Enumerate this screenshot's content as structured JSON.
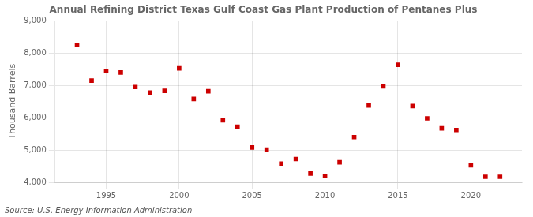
{
  "chart_data": {
    "type": "scatter",
    "title": "Annual Refining District Texas Gulf Coast Gas Plant Production of Pentanes Plus",
    "ylabel": "Thousand Barrels",
    "source": "Source: U.S. Energy Information Administration",
    "color": "#cc0000",
    "marker": "square",
    "x": [
      1993,
      1994,
      1995,
      1996,
      1997,
      1998,
      1999,
      2000,
      2001,
      2002,
      2003,
      2004,
      2005,
      2006,
      2007,
      2008,
      2009,
      2010,
      2011,
      2012,
      2013,
      2014,
      2015,
      2016,
      2017,
      2018,
      2019,
      2020,
      2021,
      2022
    ],
    "values": [
      8250,
      7150,
      7450,
      7400,
      6950,
      6780,
      6830,
      7530,
      6580,
      6820,
      5920,
      5720,
      5080,
      5010,
      4580,
      4720,
      4270,
      4190,
      4620,
      5400,
      6380,
      6970,
      7640,
      6360,
      5980,
      5670,
      5620,
      4530,
      4170,
      4170
    ],
    "xlim": [
      1991.5,
      2023.5
    ],
    "xticks": [
      1995,
      2000,
      2005,
      2010,
      2015,
      2020
    ],
    "ylim": [
      4000,
      9000
    ],
    "yticks": [
      {
        "value": 4000,
        "label": "4,000"
      },
      {
        "value": 5000,
        "label": "5,000"
      },
      {
        "value": 6000,
        "label": "6,000"
      },
      {
        "value": 7000,
        "label": "7,000"
      },
      {
        "value": 8000,
        "label": "8,000"
      },
      {
        "value": 9000,
        "label": "9,000"
      }
    ],
    "grid": true
  }
}
